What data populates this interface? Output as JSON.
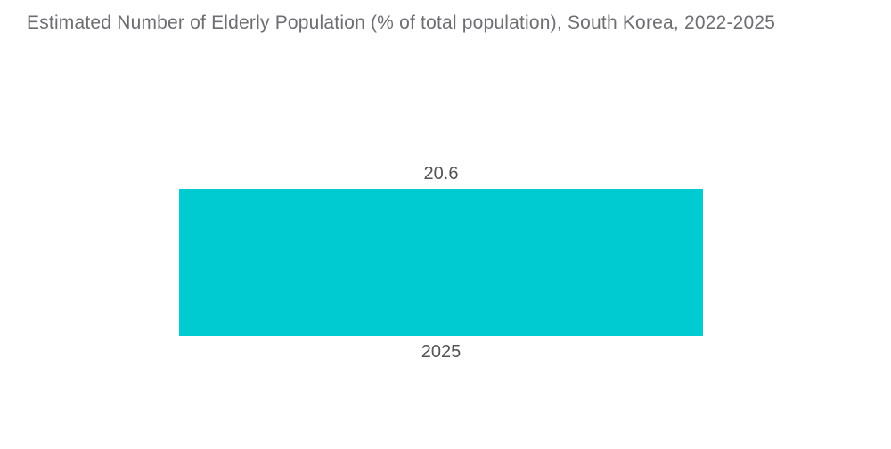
{
  "chart_data": {
    "type": "bar",
    "title": "Estimated Number of Elderly Population (% of total population), South Korea, 2022-2025",
    "categories": [
      "2025"
    ],
    "values": [
      20.6
    ],
    "value_labels": [
      "20.6"
    ],
    "xlabel": "",
    "ylabel": "",
    "ylim": [
      0,
      25
    ],
    "grid": false,
    "legend_position": "none",
    "colors": {
      "bar": "#00CBD1",
      "title_text": "#6D6E71",
      "label_text": "#515356",
      "background": "#FFFFFF"
    }
  }
}
